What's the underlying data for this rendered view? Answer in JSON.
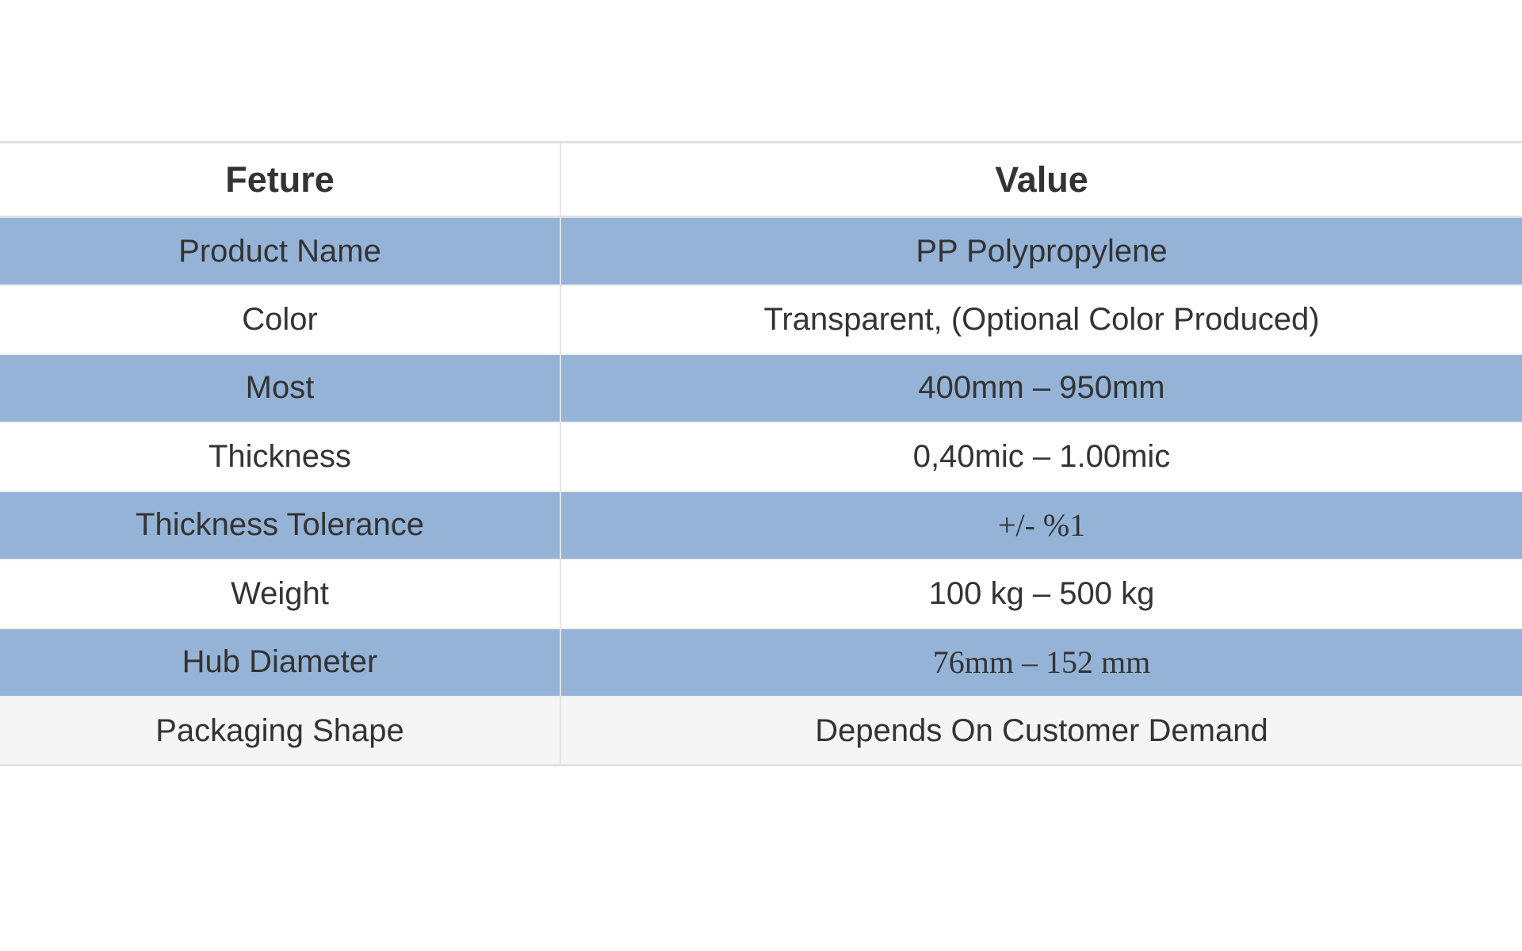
{
  "table": {
    "headers": {
      "feature": "Feture",
      "value": "Value"
    },
    "rows": [
      {
        "feature": "Product Name",
        "value": "PP Polypropylene",
        "style": "blue"
      },
      {
        "feature": "Color",
        "value": "Transparent, (Optional Color Produced)",
        "style": "white"
      },
      {
        "feature": "Most",
        "value": "400mm – 950mm",
        "style": "blue"
      },
      {
        "feature": "Thickness",
        "value": "0,40mic – 1.00mic",
        "style": "white"
      },
      {
        "feature": "Thickness Tolerance",
        "value": "+/- %1",
        "style": "blue"
      },
      {
        "feature": "Weight",
        "value": "100 kg – 500 kg",
        "style": "white"
      },
      {
        "feature": "Hub Diameter",
        "value": "76mm – 152 mm",
        "style": "blue"
      },
      {
        "feature": "Packaging Shape",
        "value": "Depends On Customer Demand",
        "style": "grey"
      }
    ]
  },
  "colors": {
    "row_blue": "#95b3d7",
    "row_white": "#ffffff",
    "row_grey": "#f5f5f5",
    "text": "#333333",
    "border": "#e2e2e2"
  }
}
